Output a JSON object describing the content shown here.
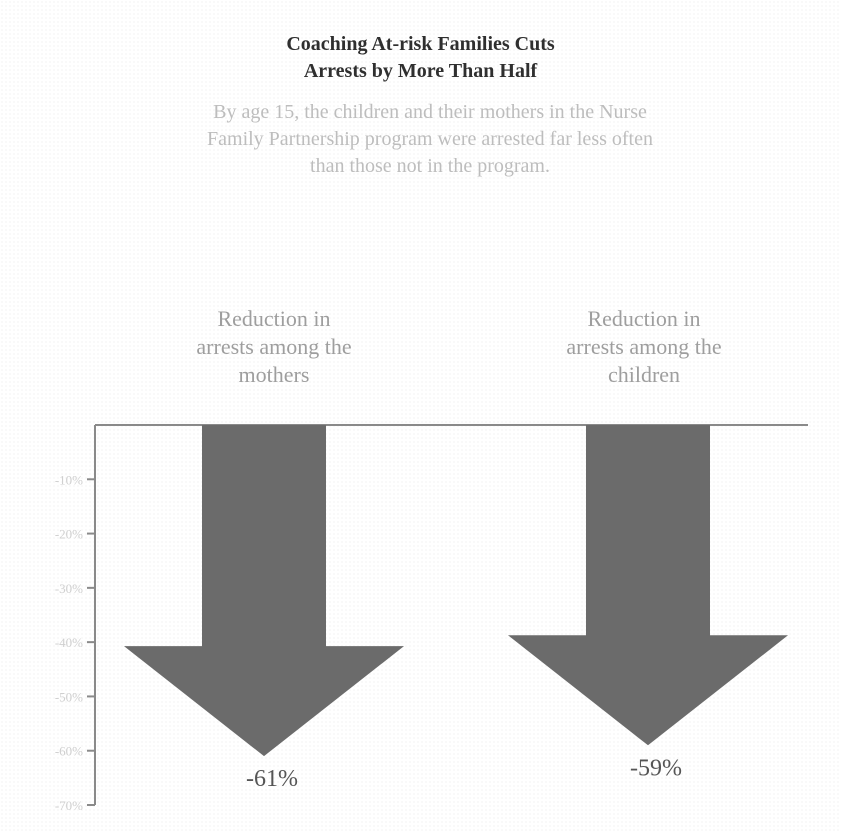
{
  "header": {
    "title_line1": "Coaching At-risk Families Cuts",
    "title_line2": "Arrests by More Than Half",
    "subtitle_line1": "By age 15, the children and their mothers in the Nurse",
    "subtitle_line2": "Family Partnership program were arrested far less often",
    "subtitle_line3": "than those not in the program."
  },
  "chart_data": {
    "type": "bar",
    "orientation": "vertical-down-arrows",
    "title": "Coaching At-risk Families Cuts Arrests by More Than Half",
    "subtitle": "By age 15, the children and their mothers in the Nurse Family Partnership program were arrested far less often than those not in the program.",
    "categories": [
      {
        "label_lines": [
          "Reduction in",
          "arrests among the",
          "mothers"
        ]
      },
      {
        "label_lines": [
          "Reduction in",
          "arrests among the",
          "children"
        ]
      }
    ],
    "values": [
      -61,
      -59
    ],
    "value_labels": [
      "-61%",
      "-59%"
    ],
    "ylim": [
      -70,
      0
    ],
    "y_ticks": [
      -10,
      -20,
      -30,
      -40,
      -50,
      -60,
      -70
    ],
    "y_tick_labels": [
      "-10%",
      "-20%",
      "-30%",
      "-40%",
      "-50%",
      "-60%",
      "-70%"
    ],
    "ylabel": "",
    "xlabel": "",
    "grid": false,
    "legend": "none",
    "colors": {
      "arrow": "#6b6b6b",
      "axis": "#8a8a8a",
      "tick_label": "#cfcfcf",
      "value_label": "#555555"
    }
  }
}
